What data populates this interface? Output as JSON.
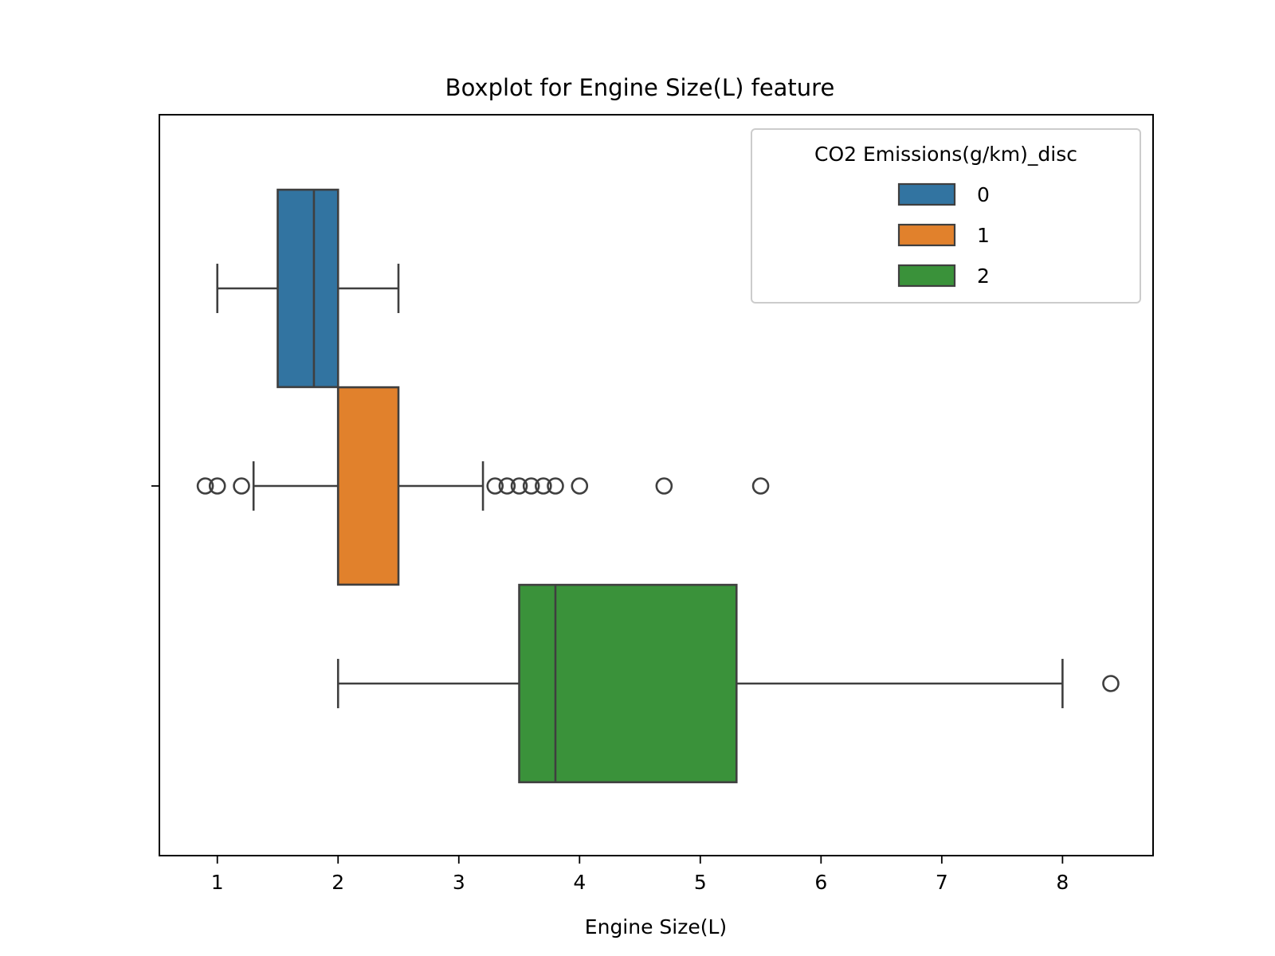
{
  "chart_data": {
    "type": "boxplot",
    "orientation": "horizontal",
    "title": "Boxplot for Engine Size(L) feature",
    "xlabel": "Engine Size(L)",
    "ylabel": "",
    "xlim": [
      0.52,
      8.75
    ],
    "xticks": [
      1,
      2,
      3,
      4,
      5,
      6,
      7,
      8
    ],
    "grid": false,
    "legend": {
      "title": "CO2 Emissions(g/km)_disc",
      "placement": "top-right",
      "entries": [
        "0",
        "1",
        "2"
      ]
    },
    "series": [
      {
        "name": "0",
        "color": "#3274a1",
        "whisker_low": 1.0,
        "q1": 1.5,
        "median": 1.8,
        "q3": 2.0,
        "whisker_high": 2.5,
        "outliers": []
      },
      {
        "name": "1",
        "color": "#e1812c",
        "whisker_low": 1.3,
        "q1": 2.0,
        "median": 2.0,
        "q3": 2.5,
        "whisker_high": 3.2,
        "outliers": [
          0.9,
          1.0,
          1.2,
          3.3,
          3.4,
          3.5,
          3.6,
          3.7,
          3.8,
          4.0,
          4.7,
          5.5
        ]
      },
      {
        "name": "2",
        "color": "#3a923a",
        "whisker_low": 2.0,
        "q1": 3.5,
        "median": 3.8,
        "q3": 5.3,
        "whisker_high": 8.0,
        "outliers": [
          8.4
        ]
      }
    ]
  }
}
